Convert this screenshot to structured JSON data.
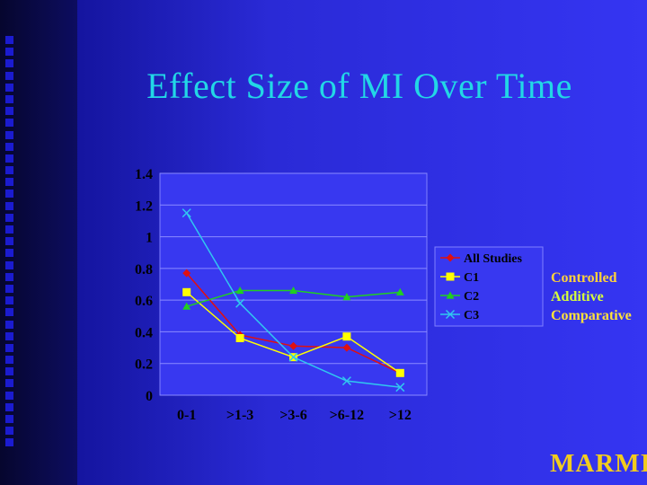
{
  "slide": {
    "title": "Effect Size of MI Over Time",
    "brand": "MARMIT"
  },
  "side_labels": [
    {
      "text": "Controlled",
      "color": "#ffd23a"
    },
    {
      "text": "Additive",
      "color": "#d7ff3a"
    },
    {
      "text": "Comparative",
      "color": "#ffe23a"
    }
  ],
  "chart_data": {
    "type": "line",
    "title": "",
    "xlabel": "",
    "ylabel": "",
    "categories": [
      "0-1",
      ">1-3",
      ">3-6",
      ">6-12",
      ">12"
    ],
    "ylim": [
      0,
      1.4
    ],
    "yticks": [
      0,
      0.2,
      0.4,
      0.6,
      0.8,
      1,
      1.2,
      1.4
    ],
    "grid": true,
    "legend_position": "right",
    "series": [
      {
        "name": "All Studies",
        "color": "#e01010",
        "marker": "diamond",
        "values": [
          0.77,
          0.38,
          0.31,
          0.3,
          0.14
        ]
      },
      {
        "name": "C1",
        "color": "#ffff00",
        "marker": "square",
        "values": [
          0.65,
          0.36,
          0.24,
          0.37,
          0.14
        ]
      },
      {
        "name": "C2",
        "color": "#20d020",
        "marker": "triangle",
        "values": [
          0.56,
          0.66,
          0.66,
          0.62,
          0.65
        ]
      },
      {
        "name": "C3",
        "color": "#30c8f0",
        "marker": "x",
        "values": [
          1.15,
          0.58,
          0.24,
          0.09,
          0.05
        ]
      }
    ]
  }
}
